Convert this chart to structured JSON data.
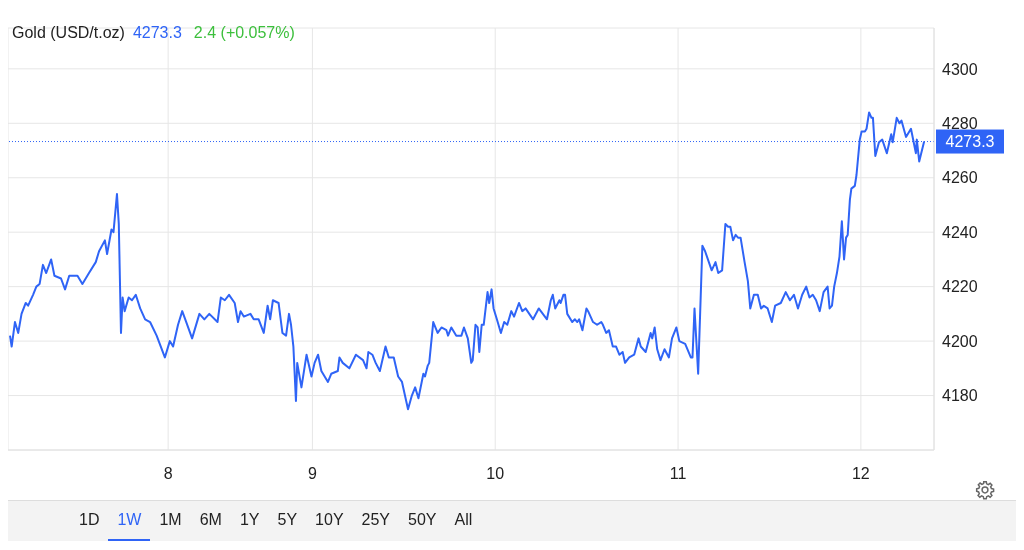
{
  "chart_data": {
    "type": "line",
    "title": "Gold (USD/t.oz)",
    "annotations": [
      "4273.3",
      "2.4 (+0.057%)",
      "1D",
      "1W",
      "1M",
      "6M",
      "1Y",
      "5Y",
      "10Y",
      "25Y",
      "50Y",
      "All"
    ],
    "x": [
      7.346,
      7.355,
      7.373,
      7.391,
      7.409,
      7.432,
      7.445,
      7.472,
      7.49,
      7.508,
      7.526,
      7.544,
      7.571,
      7.589,
      7.625,
      7.647,
      7.67,
      7.715,
      7.742,
      7.778,
      7.815,
      7.833,
      7.865,
      7.877,
      7.901,
      7.912,
      7.931,
      7.941,
      7.953,
      7.962,
      7.973,
      7.995,
      8.013,
      8.034,
      8.058,
      8.085,
      8.112,
      8.148,
      8.193,
      8.22,
      8.238,
      8.265,
      8.288,
      8.31,
      8.342,
      8.382,
      8.409,
      8.436,
      8.481,
      8.499,
      8.521,
      8.544,
      8.575,
      8.593,
      8.607,
      8.625,
      8.661,
      8.679,
      8.706,
      8.734,
      8.755,
      8.769,
      8.784,
      8.815,
      8.836,
      8.856,
      8.872,
      8.883,
      8.896,
      8.91,
      8.917,
      8.94,
      8.968,
      8.995,
      9.012,
      9.031,
      9.049,
      9.085,
      9.103,
      9.139,
      9.148,
      9.166,
      9.202,
      9.238,
      9.277,
      9.296,
      9.306,
      9.328,
      9.346,
      9.369,
      9.4,
      9.418,
      9.445,
      9.469,
      9.49,
      9.523,
      9.544,
      9.562,
      9.58,
      9.607,
      9.616,
      9.631,
      9.639,
      9.661,
      9.685,
      9.706,
      9.733,
      9.742,
      9.76,
      9.787,
      9.815,
      9.829,
      9.85,
      9.869,
      9.877,
      9.892,
      9.904,
      9.913,
      9.926,
      9.937,
      9.958,
      9.967,
      9.98,
      9.991,
      10.009,
      10.031,
      10.049,
      10.066,
      10.088,
      10.103,
      10.13,
      10.148,
      10.166,
      10.207,
      10.238,
      10.283,
      10.304,
      10.315,
      10.328,
      10.351,
      10.358,
      10.373,
      10.382,
      10.394,
      10.421,
      10.436,
      10.449,
      10.459,
      10.477,
      10.499,
      10.508,
      10.535,
      10.557,
      10.58,
      10.589,
      10.607,
      10.622,
      10.643,
      10.661,
      10.679,
      10.697,
      10.71,
      10.733,
      10.76,
      10.784,
      10.796,
      10.823,
      10.85,
      10.859,
      10.872,
      10.886,
      10.904,
      10.926,
      10.95,
      10.967,
      10.991,
      11.007,
      11.039,
      11.07,
      11.079,
      11.09,
      11.11,
      11.133,
      11.148,
      11.184,
      11.205,
      11.22,
      11.241,
      11.259,
      11.274,
      11.286,
      11.301,
      11.315,
      11.328,
      11.342,
      11.364,
      11.382,
      11.395,
      11.415,
      11.436,
      11.454,
      11.469,
      11.49,
      11.513,
      11.531,
      11.562,
      11.589,
      11.612,
      11.634,
      11.656,
      11.679,
      11.701,
      11.719,
      11.737,
      11.755,
      11.775,
      11.796,
      11.818,
      11.829,
      11.842,
      11.854,
      11.869,
      11.883,
      11.896,
      11.908,
      11.919,
      11.928,
      11.94,
      11.948,
      11.967,
      11.976,
      11.994,
      12.004,
      12.022,
      12.031,
      12.045,
      12.058,
      12.066,
      12.079,
      12.099,
      12.117,
      12.142,
      12.166,
      12.174,
      12.196,
      12.211,
      12.222,
      12.247,
      12.274,
      12.301,
      12.306,
      12.319,
      12.346
    ],
    "series": [
      {
        "color": "#2f64f6",
        "values": [
          4202,
          4198,
          4207,
          4203,
          4210,
          4214,
          4213,
          4217,
          4220,
          4221,
          4228,
          4225,
          4230,
          4224,
          4223,
          4219,
          4224,
          4224,
          4221,
          4225,
          4229,
          4233,
          4237,
          4232,
          4241,
          4240,
          4254,
          4243,
          4203,
          4216,
          4211,
          4216,
          4215,
          4217,
          4212,
          4208,
          4207,
          4202,
          4194,
          4200,
          4198,
          4206,
          4211,
          4207,
          4201,
          4210,
          4208,
          4210,
          4207,
          4216,
          4215,
          4217,
          4214,
          4207,
          4211,
          4209,
          4210,
          4208,
          4208,
          4203,
          4213,
          4208,
          4215,
          4214,
          4203,
          4202,
          4210,
          4206,
          4198,
          4178,
          4192,
          4183,
          4195,
          4187,
          4192,
          4195,
          4189,
          4185,
          4188,
          4189,
          4194,
          4192,
          4190,
          4195,
          4193,
          4190,
          4196,
          4195,
          4192,
          4189,
          4198,
          4194,
          4194,
          4187,
          4185,
          4175,
          4180,
          4183,
          4179,
          4188,
          4187,
          4191,
          4192,
          4207,
          4203,
          4205,
          4204,
          4202,
          4205,
          4202,
          4202,
          4205,
          4201,
          4192,
          4193,
          4206,
          4205,
          4196,
          4206,
          4206,
          4218,
          4214,
          4219,
          4212,
          4208,
          4203,
          4207,
          4206,
          4211,
          4209,
          4214,
          4211,
          4212,
          4208,
          4212,
          4208,
          4215,
          4217,
          4212,
          4215,
          4214,
          4217,
          4217,
          4210,
          4207,
          4208,
          4207,
          4208,
          4204,
          4212,
          4211,
          4207,
          4206,
          4207,
          4206,
          4203,
          4204,
          4198,
          4198,
          4195,
          4196,
          4192,
          4194,
          4195,
          4201,
          4198,
          4196,
          4203,
          4201,
          4205,
          4197,
          4193,
          4197,
          4194,
          4201,
          4205,
          4200,
          4199,
          4194,
          4194,
          4212,
          4188,
          4235,
          4233,
          4226,
          4229,
          4225,
          4226,
          4243,
          4242,
          4242,
          4237,
          4239,
          4238,
          4238,
          4229,
          4222,
          4212,
          4217,
          4217,
          4212,
          4213,
          4212,
          4207,
          4213,
          4214,
          4218,
          4215,
          4217,
          4212,
          4217,
          4220,
          4216,
          4217,
          4215,
          4211,
          4218,
          4220,
          4212,
          4213,
          4220,
          4225,
          4231,
          4244,
          4230,
          4238,
          4239,
          4252,
          4256,
          4257,
          4261,
          4274,
          4277,
          4277,
          4278,
          4284,
          4282,
          4282,
          4268,
          4273,
          4274,
          4269,
          4276,
          4273,
          4282,
          4280,
          4281,
          4275,
          4278,
          4269,
          4274,
          4266,
          4273.3
        ]
      }
    ],
    "xlim": [
      7.335,
      12.4
    ],
    "xticks": [
      {
        "value": 8.211,
        "label": "8"
      },
      9,
      10,
      11,
      12
    ],
    "ylim": [
      4160,
      4315
    ],
    "yticks": [
      4180,
      4200,
      4220,
      4240,
      4260,
      4280,
      4300
    ],
    "grid": true,
    "marker": "none",
    "line_style": "solid",
    "ref_lines": [
      {
        "axis": "y",
        "value": 4273.3,
        "label": "4273.3",
        "color": "#2f64f6",
        "line_style": "dotted"
      }
    ]
  }
}
